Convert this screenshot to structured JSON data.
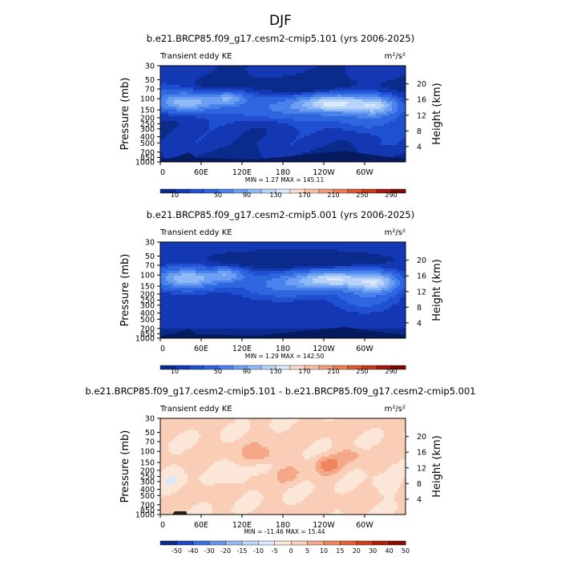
{
  "figure_title": "DJF",
  "chart_data": [
    {
      "type": "heatmap",
      "title": "b.e21.BRCP85.f09_g17.cesm2-cmip5.101 (yrs 2006-2025)",
      "subtitle": "Transient eddy KE",
      "units": "m²/s²",
      "ylabel": "Pressure (mb)",
      "ylabel_right": "Height (km)",
      "x_ticks": [
        "0",
        "60E",
        "120E",
        "180",
        "120W",
        "60W"
      ],
      "y_ticks": [
        "30",
        "50",
        "70",
        "100",
        "150",
        "200",
        "250",
        "300",
        "400",
        "500",
        "700",
        "850",
        "1000"
      ],
      "y_ticks_right": [
        "20",
        "16",
        "12",
        "8",
        "4"
      ],
      "stats": "MIN =     1.27   MAX =  145.11",
      "min": 1.27,
      "max": 145.11,
      "colorbar_labels": [
        "10",
        "50",
        "90",
        "130",
        "170",
        "210",
        "250",
        "290"
      ]
    },
    {
      "type": "heatmap",
      "title": "b.e21.BRCP85.f09_g17.cesm2-cmip5.001 (yrs 2006-2025)",
      "subtitle": "Transient eddy KE",
      "units": "m²/s²",
      "ylabel": "Pressure (mb)",
      "ylabel_right": "Height (km)",
      "x_ticks": [
        "0",
        "60E",
        "120E",
        "180",
        "120W",
        "60W"
      ],
      "y_ticks": [
        "30",
        "50",
        "70",
        "100",
        "150",
        "200",
        "250",
        "300",
        "400",
        "500",
        "700",
        "850",
        "1000"
      ],
      "y_ticks_right": [
        "20",
        "16",
        "12",
        "8",
        "4"
      ],
      "stats": "MIN =     1.29   MAX =  142.50",
      "min": 1.29,
      "max": 142.5,
      "colorbar_labels": [
        "10",
        "50",
        "90",
        "130",
        "170",
        "210",
        "250",
        "290"
      ]
    },
    {
      "type": "heatmap",
      "title": "b.e21.BRCP85.f09_g17.cesm2-cmip5.101 - b.e21.BRCP85.f09_g17.cesm2-cmip5.001",
      "subtitle": "Transient eddy KE",
      "units": "m²/s²",
      "ylabel": "Pressure (mb)",
      "ylabel_right": "Height (km)",
      "x_ticks": [
        "0",
        "60E",
        "120E",
        "180",
        "120W",
        "60W"
      ],
      "y_ticks": [
        "30",
        "50",
        "70",
        "100",
        "150",
        "200",
        "250",
        "300",
        "400",
        "500",
        "700",
        "850",
        "1000"
      ],
      "y_ticks_right": [
        "20",
        "16",
        "12",
        "8",
        "4"
      ],
      "stats": "MIN =  -11.46   MAX =   15.44",
      "min": -11.46,
      "max": 15.44,
      "colorbar_labels": [
        "-50",
        "-40",
        "-30",
        "-20",
        "-15",
        "-10",
        "-5",
        "0",
        "5",
        "10",
        "15",
        "20",
        "30",
        "40",
        "50"
      ]
    }
  ],
  "colors": {
    "seq": [
      "#0a2a8c",
      "#1438b4",
      "#2050d2",
      "#2e66e0",
      "#4a82ec",
      "#6c9ef2",
      "#90baf6",
      "#b8d4f8",
      "#dce8fa",
      "#f8dccc",
      "#f6c0a6",
      "#f29e7c",
      "#ec7c54",
      "#e0562e",
      "#c8381a",
      "#a01c0c",
      "#7a0a04"
    ],
    "diff": [
      "#0a2a8c",
      "#1e48c8",
      "#3c6ee2",
      "#6896ee",
      "#94b8f4",
      "#bed6fa",
      "#dce8fb",
      "#fbe6d8",
      "#f9cdb6",
      "#f4a888",
      "#ee8460",
      "#e6603a",
      "#d23c1e",
      "#b0200e",
      "#880c04"
    ]
  }
}
